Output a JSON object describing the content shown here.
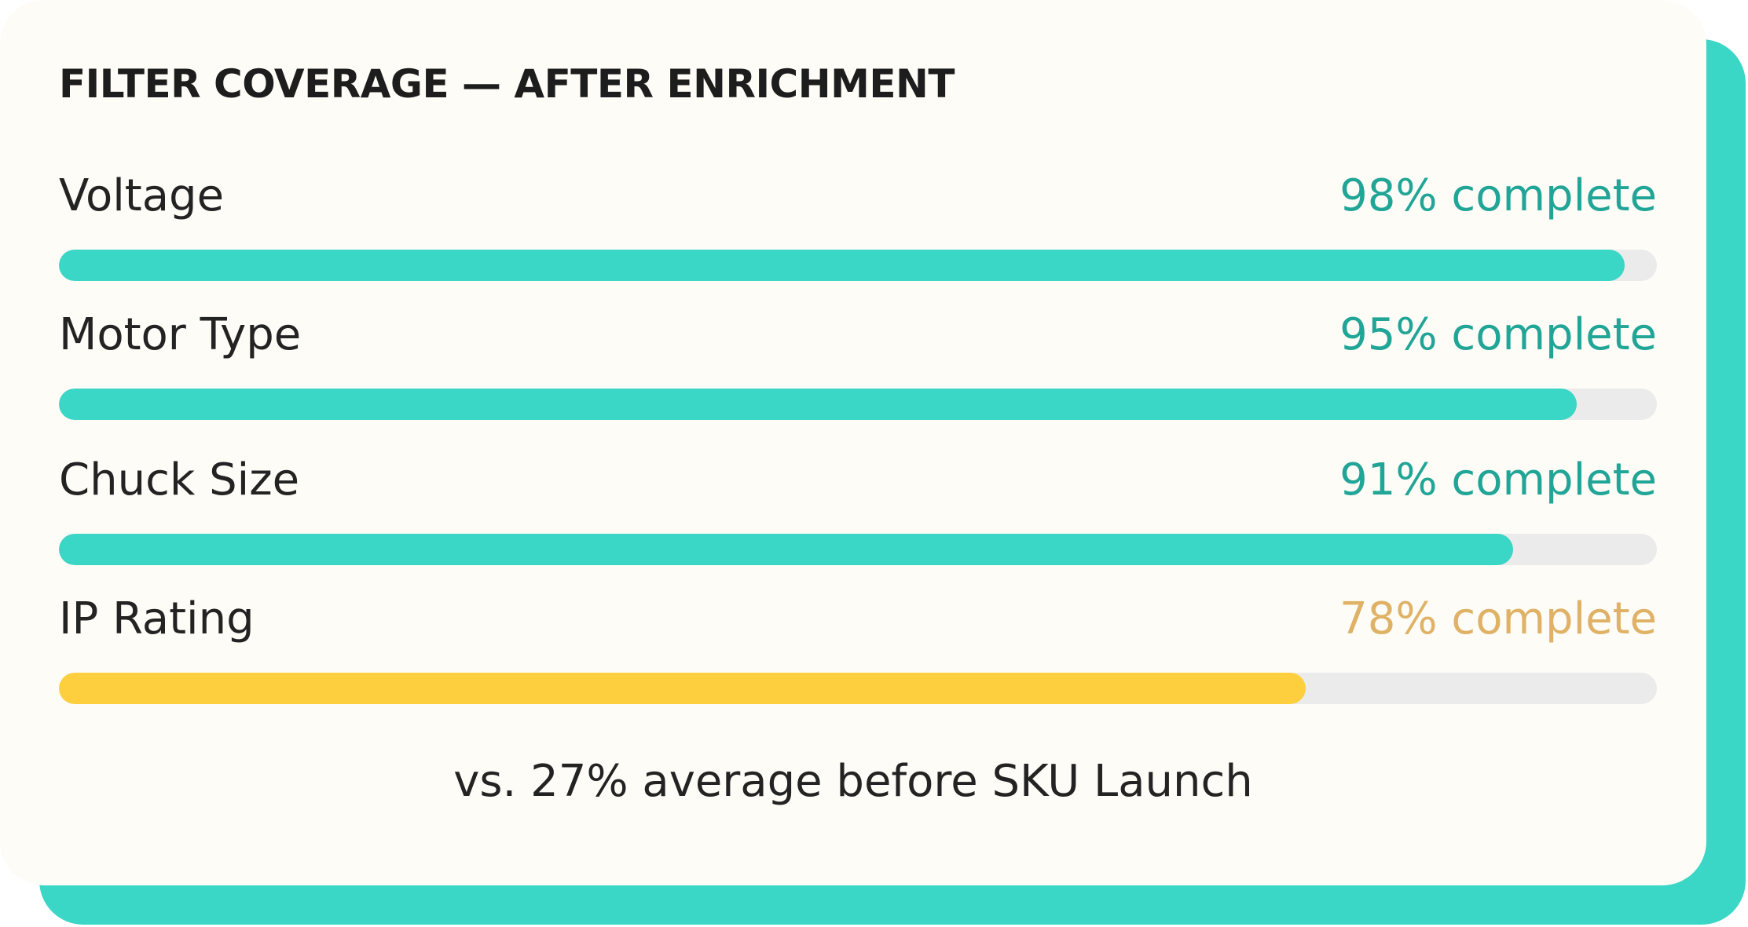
{
  "card": {
    "title": "FILTER COVERAGE — AFTER ENRICHMENT",
    "footnote": "vs. 27% average before SKU Launch"
  },
  "metrics": [
    {
      "label": "Voltage",
      "status": "98% complete",
      "percent": 98,
      "color": "#3ad6c6",
      "status_color": "#20a596"
    },
    {
      "label": "Motor Type",
      "status": "95% complete",
      "percent": 95,
      "color": "#3ad6c6",
      "status_color": "#20a596"
    },
    {
      "label": "Chuck Size",
      "status": "91% complete",
      "percent": 91,
      "color": "#3ad6c6",
      "status_color": "#20a596"
    },
    {
      "label": "IP Rating",
      "status": "78% complete",
      "percent": 78,
      "color": "#fdcf3f",
      "status_color": "#dfb266"
    }
  ],
  "colors": {
    "accent": "#3ad6c6",
    "warning": "#fdcf3f",
    "track": "#ebebeb",
    "card_background": "#fdfcf7",
    "text": "#232323"
  }
}
